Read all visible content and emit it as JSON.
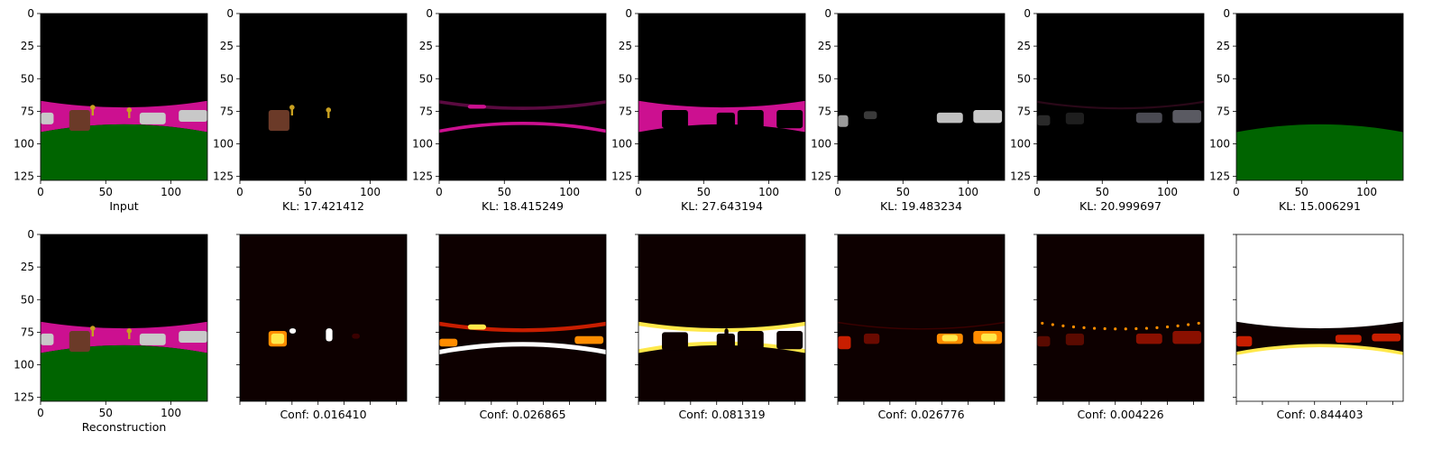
{
  "figure": {
    "axis_ticks": [
      "0",
      "25",
      "50",
      "75",
      "100",
      "125"
    ],
    "x_ticks": [
      "0",
      "50",
      "100"
    ],
    "panels_top": [
      {
        "name": "input-panel",
        "caption": "Input",
        "content": "scene"
      },
      {
        "name": "slot-1-panel",
        "caption": "KL: 17.421412",
        "content": "objects"
      },
      {
        "name": "slot-2-panel",
        "caption": "KL: 18.415249",
        "content": "wall-edges"
      },
      {
        "name": "slot-3-panel",
        "caption": "KL: 27.643194",
        "content": "wall"
      },
      {
        "name": "slot-4-panel",
        "caption": "KL: 19.483234",
        "content": "cars-white"
      },
      {
        "name": "slot-5-panel",
        "caption": "KL: 20.999697",
        "content": "cars-dark"
      },
      {
        "name": "slot-6-panel",
        "caption": "KL: 15.006291",
        "content": "floor"
      }
    ],
    "panels_bottom": [
      {
        "name": "reconstruction-panel",
        "caption": "Reconstruction",
        "content": "scene"
      },
      {
        "name": "conf-1-panel",
        "caption": "Conf: 0.016410",
        "content": "heat-objects"
      },
      {
        "name": "conf-2-panel",
        "caption": "Conf: 0.026865",
        "content": "heat-edges"
      },
      {
        "name": "conf-3-panel",
        "caption": "Conf: 0.081319",
        "content": "heat-wall"
      },
      {
        "name": "conf-4-panel",
        "caption": "Conf: 0.026776",
        "content": "heat-cars"
      },
      {
        "name": "conf-5-panel",
        "caption": "Conf: 0.004226",
        "content": "heat-low"
      },
      {
        "name": "conf-6-panel",
        "caption": "Conf: 0.844403",
        "content": "heat-floor"
      }
    ]
  },
  "colors": {
    "background": "#000000",
    "heat_background": "#0d0000",
    "wall": "#cc1090",
    "floor": "#006400",
    "object_brown": "#6b3a28",
    "key_gold": "#c8a020",
    "car": "#c8c8c8",
    "heat_red": "#c81e00",
    "heat_orange": "#ff8c00",
    "heat_yellow": "#ffe84a",
    "heat_white": "#ffffff"
  }
}
